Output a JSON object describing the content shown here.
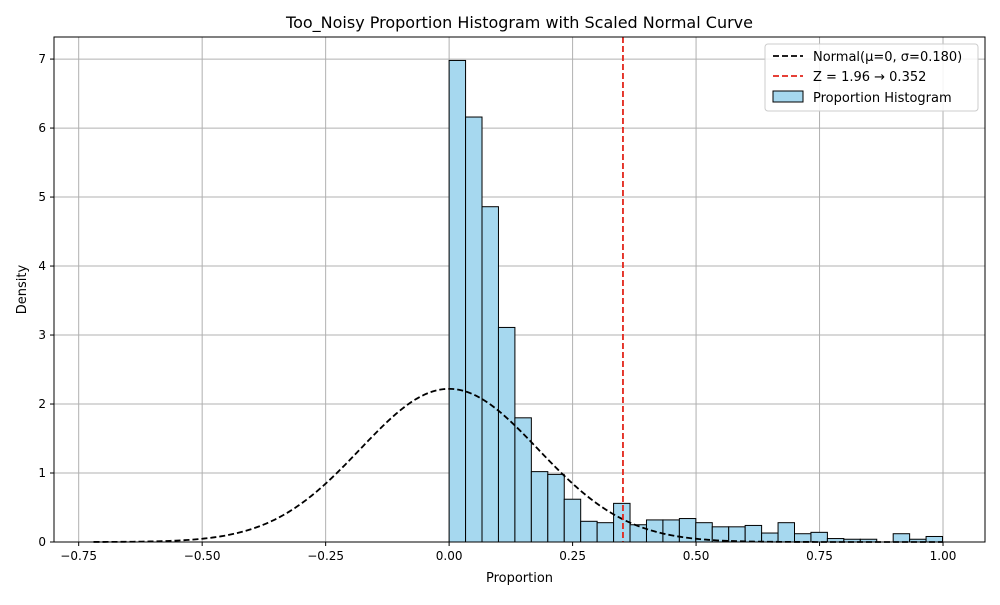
{
  "chart_data": {
    "type": "bar",
    "title": "Too_Noisy Proportion Histogram with Scaled Normal Curve",
    "xlabel": "Proportion",
    "ylabel": "Density",
    "xlim": [
      -0.8,
      1.085
    ],
    "ylim": [
      0,
      7.32
    ],
    "grid": true,
    "legend_position": "top-right",
    "x_ticks": [
      -0.75,
      -0.5,
      -0.25,
      0.0,
      0.25,
      0.5,
      0.75,
      1.0
    ],
    "x_tick_labels": [
      "−0.75",
      "−0.50",
      "−0.25",
      "0.00",
      "0.25",
      "0.50",
      "0.75",
      "1.00"
    ],
    "y_ticks": [
      0,
      1,
      2,
      3,
      4,
      5,
      6,
      7
    ],
    "y_tick_labels": [
      "0",
      "1",
      "2",
      "3",
      "4",
      "5",
      "6",
      "7"
    ],
    "histogram": {
      "name": "Proportion Histogram",
      "color": "#a6d8ef",
      "edge_color": "#000000",
      "bin_start": 0.0,
      "bin_width": 0.0333,
      "values": [
        6.98,
        6.16,
        4.86,
        3.11,
        1.8,
        1.02,
        0.98,
        0.62,
        0.3,
        0.28,
        0.56,
        0.25,
        0.32,
        0.32,
        0.34,
        0.28,
        0.22,
        0.22,
        0.24,
        0.13,
        0.28,
        0.12,
        0.14,
        0.05,
        0.04,
        0.04,
        0.0,
        0.12,
        0.04,
        0.08
      ]
    },
    "normal_curve": {
      "name": "Normal(μ=0, σ=0.180)",
      "mu": 0,
      "sigma": 0.18,
      "peak_density": 2.22,
      "x_range": [
        -0.72,
        1.0
      ],
      "color": "#000000",
      "style": "dashed"
    },
    "threshold_line": {
      "name": "Z = 1.96 → 0.352",
      "x": 0.352,
      "color": "#e3261b",
      "style": "dashed"
    }
  }
}
